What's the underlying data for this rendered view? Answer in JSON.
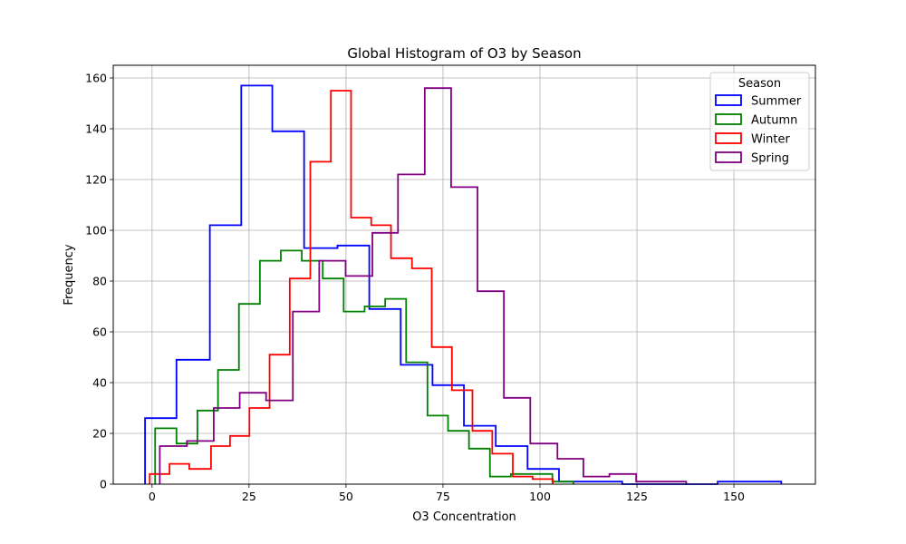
{
  "chart_data": {
    "type": "histogram",
    "title": "Global Histogram of O3 by Season",
    "xlabel": "O3 Concentration",
    "ylabel": "Frequency",
    "xlim": [
      -10,
      171
    ],
    "ylim": [
      0,
      165
    ],
    "xticks": [
      0,
      25,
      50,
      75,
      100,
      125,
      150
    ],
    "yticks": [
      0,
      20,
      40,
      60,
      80,
      100,
      120,
      140,
      160
    ],
    "grid": true,
    "legend": {
      "title": "Season",
      "placement": "top-right"
    },
    "series": [
      {
        "name": "Summer",
        "color": "#0000ff",
        "edges": [
          -1.8,
          6.3,
          14.9,
          23,
          31,
          39.2,
          47.8,
          56,
          64.1,
          72.3,
          80.4,
          88.6,
          96.8,
          104.9,
          113.1,
          121.2,
          129.5,
          137.7,
          145.8,
          162.2
        ],
        "counts": [
          26,
          49,
          102,
          157,
          139,
          93,
          94,
          69,
          47,
          39,
          23,
          15,
          6,
          1,
          1,
          0,
          0,
          0,
          1
        ]
      },
      {
        "name": "Autumn",
        "color": "#008000",
        "edges": [
          0.8,
          6.3,
          11.7,
          17,
          22.4,
          27.8,
          33.2,
          38.6,
          44,
          49.4,
          54.8,
          60.1,
          65.5,
          71,
          76.3,
          81.7,
          87.1,
          92.5,
          97.9,
          103.2,
          108.6
        ],
        "counts": [
          22,
          16,
          29,
          45,
          71,
          88,
          92,
          88,
          81,
          68,
          70,
          73,
          48,
          27,
          21,
          14,
          3,
          4,
          4,
          1
        ]
      },
      {
        "name": "Winter",
        "color": "#ff0000",
        "edges": [
          -0.6,
          4.5,
          9.6,
          15.2,
          20.1,
          25.1,
          30.3,
          35.5,
          40.8,
          46.1,
          51.3,
          56.5,
          61.6,
          67,
          72.1,
          77.3,
          82.6,
          87.7,
          93,
          98.1,
          103.3
        ],
        "counts": [
          4,
          8,
          6,
          15,
          19,
          30,
          51,
          81,
          127,
          155,
          105,
          102,
          89,
          85,
          54,
          37,
          21,
          12,
          3,
          2
        ]
      },
      {
        "name": "Spring",
        "color": "#800080",
        "edges": [
          2,
          9,
          15.9,
          22.6,
          29.4,
          36.3,
          43.1,
          49.9,
          56.8,
          63.4,
          70.3,
          77.1,
          83.9,
          90.7,
          97.5,
          104.5,
          111.2,
          117.9,
          124.8,
          131.6,
          137.7
        ],
        "counts": [
          15,
          17,
          30,
          36,
          33,
          68,
          88,
          82,
          99,
          122,
          156,
          117,
          76,
          34,
          16,
          10,
          3,
          4,
          1,
          1
        ]
      }
    ]
  }
}
